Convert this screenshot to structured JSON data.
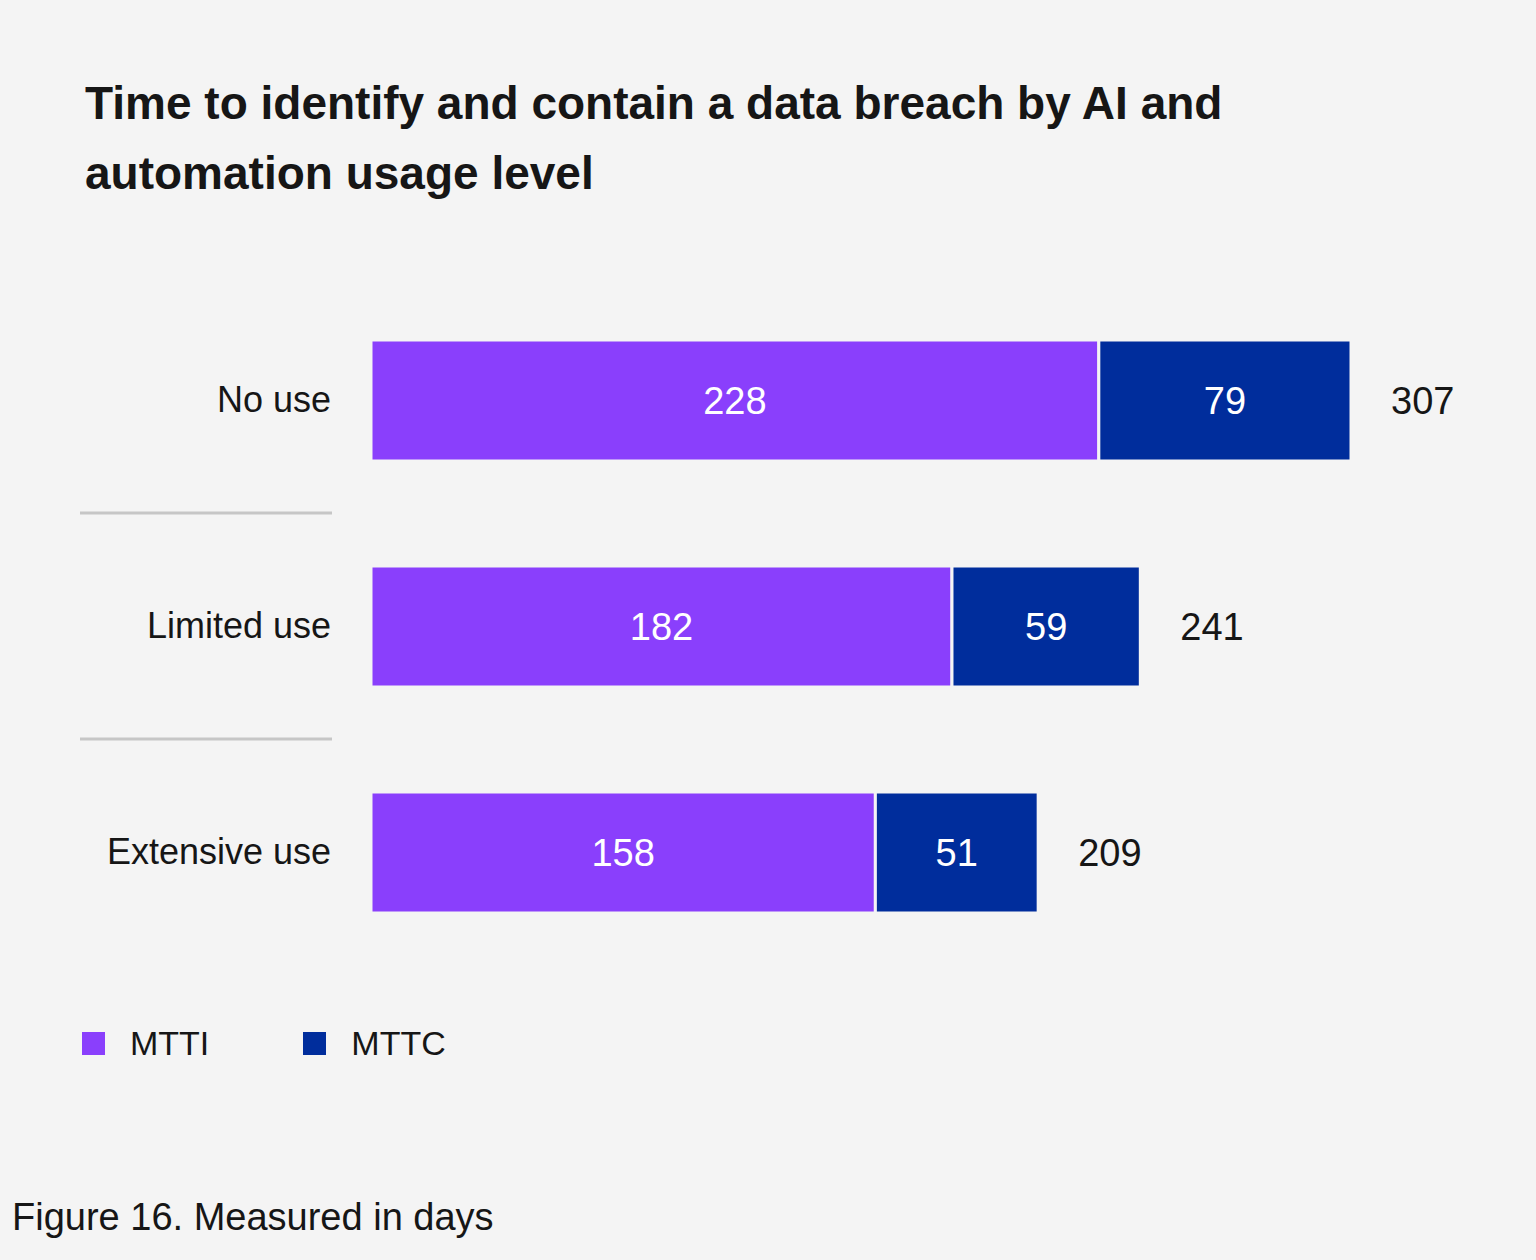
{
  "chart_data": {
    "type": "bar",
    "title": "Time to identify and contain a data breach by AI and automation usage level",
    "caption": "Figure 16. Measured in days",
    "orientation": "horizontal",
    "stacked": true,
    "data_labels": true,
    "tick_labels": false,
    "legend": "bottom-left",
    "categories": [
      "No use",
      "Limited use",
      "Extensive use"
    ],
    "series": [
      {
        "name": "MTTI",
        "color": "#8a3ffc",
        "values": [
          228,
          182,
          158
        ]
      },
      {
        "name": "MTTC",
        "color": "#002d9c",
        "values": [
          79,
          59,
          51
        ]
      }
    ],
    "totals": [
      307,
      241,
      209
    ],
    "xlim": [
      0,
      307
    ]
  }
}
